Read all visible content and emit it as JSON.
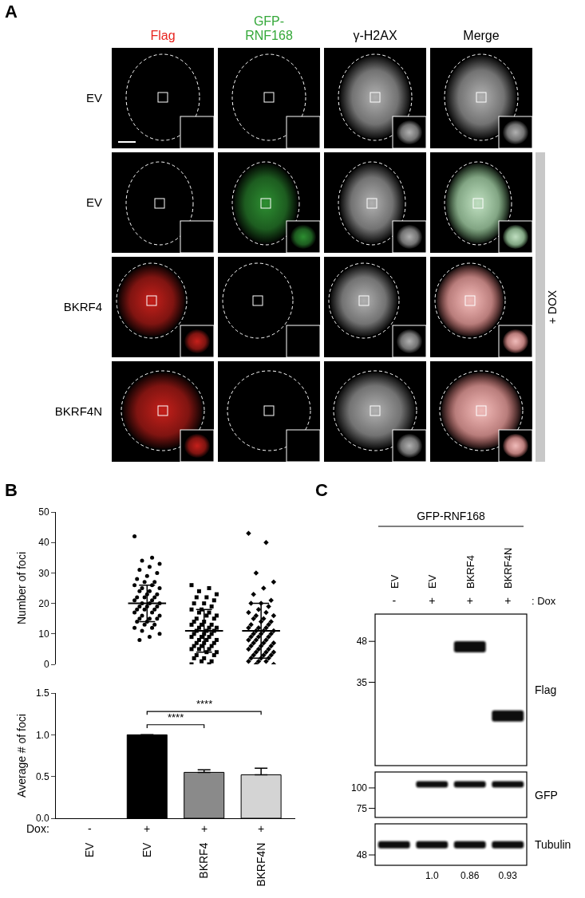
{
  "panel_labels": [
    "A",
    "B",
    "C"
  ],
  "microscopy": {
    "channels": [
      {
        "label": "Flag",
        "color": "#e8251f"
      },
      {
        "label": "GFP-RNF168",
        "color": "#35a83a"
      },
      {
        "label": "γ-H2AX",
        "color": "#d0d0d0"
      },
      {
        "label": "Merge",
        "color": "#000000"
      }
    ],
    "rows": [
      {
        "label": "EV",
        "signal": [
          "γ-H2AX"
        ]
      },
      {
        "label": "EV",
        "signal": [
          "GFP-RNF168",
          "γ-H2AX"
        ]
      },
      {
        "label": "BKRF4",
        "signal": [
          "Flag",
          "γ-H2AX"
        ]
      },
      {
        "label": "BKRF4N",
        "signal": [
          "Flag",
          "γ-H2AX"
        ]
      }
    ],
    "dox_bar": {
      "label": "+ DOX",
      "rows": [
        1,
        3
      ]
    }
  },
  "chart_data": [
    {
      "type": "scatter",
      "y_label": "Number of foci",
      "tick_labels": "y",
      "color": "#000000",
      "ylim": [
        0,
        50
      ],
      "yticks": [
        0,
        10,
        20,
        30,
        40,
        50
      ],
      "series": [
        {
          "marker": "circle",
          "values": [],
          "mean": null,
          "sd": null
        },
        {
          "marker": "circle",
          "values": [
            42,
            35,
            34,
            33,
            32,
            31,
            30,
            29,
            28,
            27,
            27,
            26,
            26,
            25,
            25,
            24,
            24,
            23,
            23,
            22,
            22,
            22,
            21,
            21,
            20,
            20,
            20,
            19,
            19,
            19,
            18,
            18,
            18,
            17,
            17,
            16,
            16,
            15,
            15,
            15,
            14,
            14,
            13,
            13,
            12,
            12,
            11,
            10,
            9,
            8
          ],
          "mean": 20,
          "sd": 6
        },
        {
          "marker": "square",
          "values": [
            26,
            25,
            24,
            23,
            22,
            22,
            21,
            20,
            20,
            19,
            18,
            18,
            17,
            17,
            16,
            16,
            15,
            15,
            14,
            14,
            13,
            13,
            13,
            12,
            12,
            12,
            11,
            11,
            11,
            10,
            10,
            10,
            9,
            9,
            9,
            8,
            8,
            8,
            7,
            7,
            7,
            6,
            6,
            6,
            5,
            5,
            5,
            4,
            4,
            3,
            3,
            2,
            2,
            1,
            1,
            0,
            0
          ],
          "mean": 11,
          "sd": 7
        },
        {
          "marker": "diamond",
          "values": [
            43,
            40,
            30,
            27,
            25,
            23,
            21,
            20,
            20,
            19,
            18,
            17,
            17,
            16,
            16,
            15,
            15,
            14,
            14,
            13,
            13,
            12,
            12,
            12,
            11,
            11,
            11,
            10,
            10,
            10,
            9,
            9,
            9,
            8,
            8,
            8,
            7,
            7,
            7,
            6,
            6,
            6,
            5,
            5,
            5,
            4,
            4,
            4,
            3,
            3,
            3,
            2,
            2,
            2,
            1,
            1,
            1,
            0,
            0
          ],
          "mean": 11,
          "sd": 9
        }
      ]
    },
    {
      "type": "bar",
      "y_label": "Average # of foci",
      "categories": [
        "EV",
        "EV",
        "BKRF4",
        "BKRF4N"
      ],
      "dox_label": "Dox:",
      "dox": [
        "-",
        "+",
        "+",
        "+"
      ],
      "values": [
        null,
        1.0,
        0.55,
        0.52
      ],
      "error": [
        null,
        0,
        0.03,
        0.08
      ],
      "colors": [
        "#000000",
        "#000000",
        "#8a8a8a",
        "#d4d4d4"
      ],
      "ylim": [
        0,
        1.5
      ],
      "yticks": [
        {
          "value": 0,
          "label": "0.0"
        },
        {
          "value": 0.5,
          "label": "0.5"
        },
        {
          "value": 1,
          "label": "1.0"
        },
        {
          "value": 1.5,
          "label": "1.5"
        }
      ],
      "significance": [
        {
          "from": 1,
          "to": 2,
          "label": "****"
        },
        {
          "from": 1,
          "to": 3,
          "label": "****"
        }
      ]
    }
  ],
  "blot": {
    "header": "GFP-RNF168",
    "lanes": [
      "EV",
      "EV",
      "BKRF4",
      "BKRF4N"
    ],
    "dox_label": ": Dox",
    "dox": [
      "-",
      "+",
      "+",
      "+"
    ],
    "panels": [
      {
        "label": "Flag",
        "markers": [
          48,
          35
        ],
        "bands_kda": [
          null,
          null,
          46,
          27
        ]
      },
      {
        "label": "GFP",
        "markers": [
          100,
          75
        ],
        "bands_kda": [
          null,
          105,
          105,
          105
        ]
      },
      {
        "label": "Tubulin",
        "markers": [
          48
        ],
        "bands_kda": [
          52,
          52,
          52,
          52
        ]
      }
    ],
    "quantification": [
      null,
      "1.0",
      "0.86",
      "0.93"
    ]
  }
}
